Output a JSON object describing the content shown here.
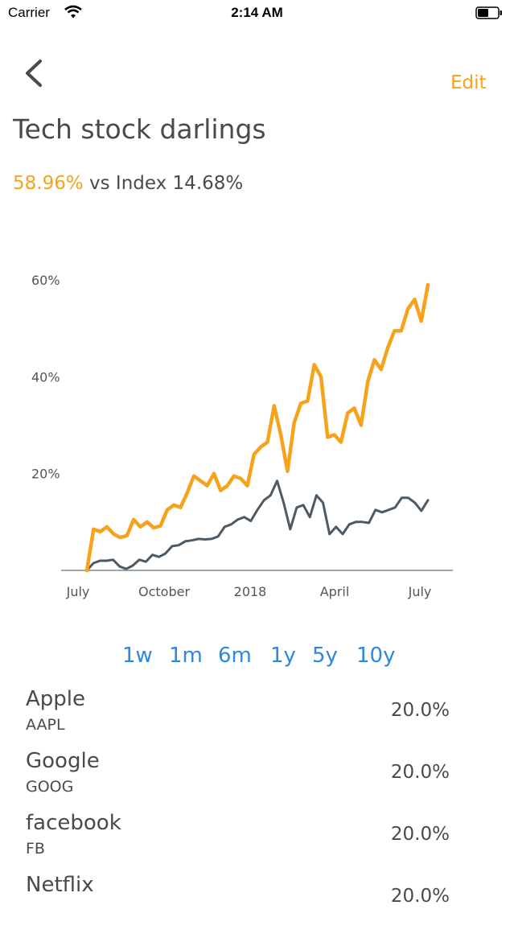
{
  "status_bar": {
    "carrier": "Carrier",
    "time": "2:14 AM"
  },
  "nav": {
    "edit_label": "Edit"
  },
  "portfolio": {
    "title": "Tech stock darlings",
    "return_value": "58.96%",
    "comparison_text": "vs Index 14.68%"
  },
  "colors": {
    "accent": "#f5a31a",
    "index_line": "#4d5a63",
    "range_link": "#2b8ae0",
    "axis": "#9aa8a8"
  },
  "chart_data": {
    "type": "line",
    "title": "",
    "x_ticks": [
      "July",
      "October",
      "2018",
      "April",
      "July"
    ],
    "y_ticks": [
      "20%",
      "40%",
      "60%"
    ],
    "ylim": [
      0,
      60
    ],
    "grid": false,
    "series": [
      {
        "name": "",
        "color": "#f5a31a",
        "values": [
          0,
          8.5,
          8,
          9,
          7.5,
          6.8,
          7.2,
          10.5,
          9,
          10,
          8.8,
          9.2,
          12.5,
          13.5,
          13,
          16,
          19.5,
          18.5,
          17.5,
          20,
          16.5,
          17.5,
          19.5,
          19,
          17.5,
          24,
          25.5,
          26.5,
          34,
          28,
          20.5,
          30.5,
          34.5,
          35,
          42.5,
          40,
          27.5,
          28,
          26.5,
          32.5,
          33.5,
          30,
          39,
          43.5,
          41.5,
          46,
          49.5,
          49.5,
          54,
          56,
          51.5,
          59
        ]
      },
      {
        "name": "",
        "color": "#4d5a63",
        "values": [
          0,
          1.5,
          2,
          2,
          2.2,
          0.8,
          0.3,
          1,
          2.2,
          1.8,
          3.2,
          2.8,
          3.5,
          5,
          5.2,
          6,
          6.2,
          6.5,
          6.4,
          6.5,
          7,
          9,
          9.5,
          10.5,
          11,
          10.2,
          12.5,
          14.5,
          15.5,
          18.5,
          14,
          8.5,
          13,
          13.5,
          11,
          15.5,
          14,
          7.5,
          9,
          7.5,
          9.5,
          10,
          10,
          9.8,
          12.5,
          12,
          12.5,
          13,
          15,
          15,
          14,
          12.3,
          14.5
        ]
      }
    ]
  },
  "ranges": [
    "1w",
    "1m",
    "6m",
    "1y",
    "5y",
    "10y"
  ],
  "holdings": [
    {
      "name": "Apple",
      "ticker": "AAPL",
      "weight": "20.0%"
    },
    {
      "name": "Google",
      "ticker": "GOOG",
      "weight": "20.0%"
    },
    {
      "name": "facebook",
      "ticker": "FB",
      "weight": "20.0%"
    },
    {
      "name": "Netflix",
      "ticker": "",
      "weight": "20.0%"
    }
  ]
}
